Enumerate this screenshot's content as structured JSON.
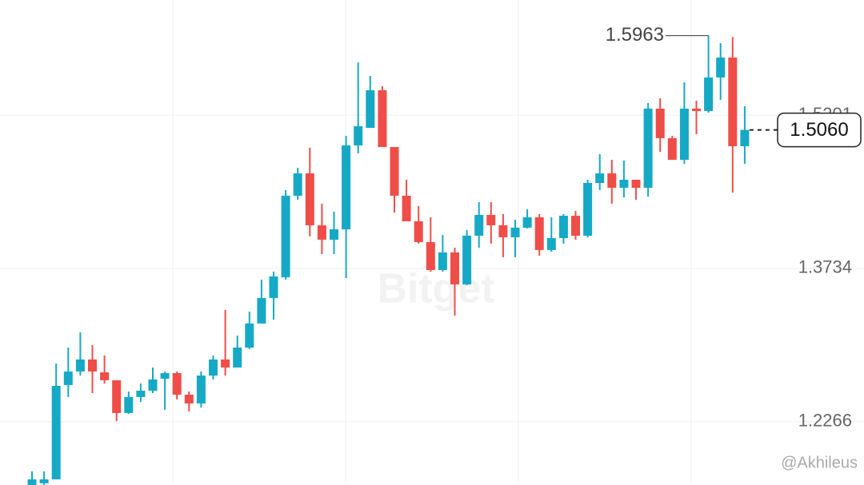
{
  "chart_data": {
    "type": "candlestick",
    "up_color": "#15a9c6",
    "down_color": "#ef4d48",
    "ylim": [
      1.166,
      1.6304
    ],
    "yticks": [
      1.2266,
      1.3734,
      1.5201
    ],
    "grid": true,
    "open": [
      1.166,
      1.1676,
      1.1714,
      1.2617,
      1.2747,
      1.2862,
      1.2739,
      1.2663,
      1.2349,
      1.2502,
      1.2563,
      1.2678,
      1.2731,
      1.2525,
      1.2441,
      1.2708,
      1.2862,
      1.2785,
      1.2976,
      1.3206,
      1.3451,
      1.3649,
      1.443,
      1.4644,
      1.4147,
      1.4009,
      1.4108,
      1.4912,
      1.508,
      1.544,
      1.4896,
      1.443,
      1.4185,
      1.3986,
      1.3718,
      1.3887,
      1.3581,
      1.4047,
      1.4246,
      1.4147,
      1.4032,
      1.4124,
      1.4223,
      1.391,
      1.4024,
      1.4238,
      1.4047,
      1.4552,
      1.4644,
      1.4506,
      1.4583,
      1.4506,
      1.5264,
      1.4981,
      1.4774,
      1.5264,
      1.5241,
      1.5562,
      1.5753,
      1.4904
    ],
    "high": [
      1.1791,
      1.1791,
      1.2823,
      1.2976,
      1.3122,
      1.2999,
      1.29,
      1.2663,
      1.2555,
      1.2632,
      1.2785,
      1.2747,
      1.2747,
      1.2555,
      1.2747,
      1.29,
      1.3336,
      1.3091,
      1.332,
      1.3626,
      1.3703,
      1.4483,
      1.4697,
      1.4889,
      1.4353,
      1.4277,
      1.5003,
      1.5707,
      1.5577,
      1.5478,
      1.4896,
      1.4583,
      1.433,
      1.4223,
      1.4055,
      1.3932,
      1.4101,
      1.4369,
      1.4369,
      1.4254,
      1.42,
      1.43,
      1.4254,
      1.4223,
      1.4254,
      1.4284,
      1.4583,
      1.4828,
      1.4774,
      1.4766,
      1.4583,
      1.5317,
      1.5363,
      1.5003,
      1.5516,
      1.534,
      1.5963,
      1.5891,
      1.595,
      1.5287
    ],
    "low": [
      1.166,
      1.166,
      1.1714,
      1.2502,
      1.2708,
      1.254,
      1.2632,
      1.2272,
      1.2341,
      1.2456,
      1.254,
      1.238,
      1.2479,
      1.2364,
      1.2402,
      1.267,
      1.2708,
      1.2785,
      1.2961,
      1.3244,
      1.3244,
      1.3626,
      1.4391,
      1.404,
      1.3871,
      1.3871,
      1.3642,
      1.4835,
      1.508,
      1.4896,
      1.4269,
      1.4185,
      1.3971,
      1.3703,
      1.3703,
      1.3282,
      1.3573,
      1.3932,
      1.3971,
      1.3841,
      1.3841,
      1.4116,
      1.3856,
      1.3894,
      1.3971,
      1.4009,
      1.4032,
      1.4483,
      1.4353,
      1.4414,
      1.4391,
      1.4422,
      1.485,
      1.4774,
      1.4736,
      1.5019,
      1.5225,
      1.5348,
      1.446,
      1.4736
    ],
    "close": [
      1.1714,
      1.1714,
      1.2609,
      1.2747,
      1.2862,
      1.2747,
      1.2663,
      1.2349,
      1.2502,
      1.2563,
      1.267,
      1.2731,
      1.2525,
      1.2441,
      1.2708,
      1.2862,
      1.2785,
      1.2976,
      1.3206,
      1.3451,
      1.3657,
      1.443,
      1.4644,
      1.4147,
      1.4009,
      1.4108,
      1.4912,
      1.5095,
      1.544,
      1.4896,
      1.443,
      1.4185,
      1.3986,
      1.3718,
      1.3887,
      1.3581,
      1.4047,
      1.4246,
      1.4147,
      1.4032,
      1.4124,
      1.4223,
      1.391,
      1.4024,
      1.4238,
      1.4047,
      1.4552,
      1.4644,
      1.4506,
      1.4583,
      1.4506,
      1.5264,
      1.4981,
      1.4774,
      1.5264,
      1.5241,
      1.5562,
      1.5753,
      1.4904,
      1.506
    ],
    "high_marker": {
      "value": 1.5963,
      "label": "1.5963"
    },
    "last_price": {
      "value": 1.506,
      "label": "1.5060"
    },
    "watermark": "Bitget",
    "credit": "@Akhileus"
  }
}
